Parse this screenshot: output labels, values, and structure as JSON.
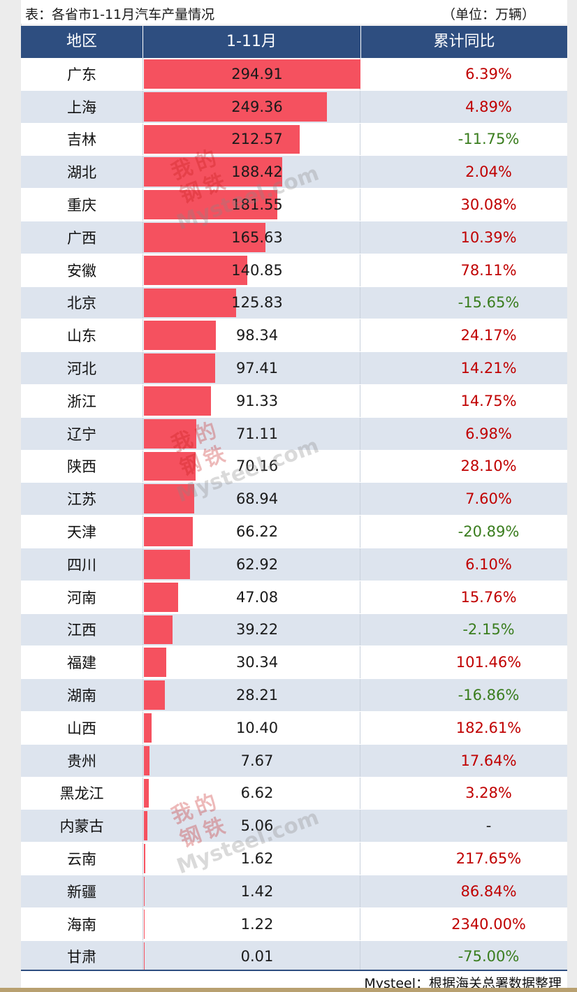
{
  "caption": {
    "title": "表：各省市1-11月汽车产量情况",
    "unit": "（单位：万辆）"
  },
  "header": {
    "region": "地区",
    "period": "1-11月",
    "yoy": "累计同比"
  },
  "source": "Mysteel：根据海关总署数据整理",
  "watermark": {
    "cn": [
      "我",
      "的",
      "钢",
      "铁"
    ],
    "en": "Mysteel.com"
  },
  "colors": {
    "header_bg": "#2e4e80",
    "bar": "#f5515f",
    "positive": "#c00000",
    "negative": "#3a7d1e",
    "row_alt": "#dde4ee"
  },
  "chart_data": {
    "type": "table",
    "columns": [
      "地区",
      "1-11月",
      "累计同比"
    ],
    "rows": [
      {
        "region": "广东",
        "value": "294.91",
        "yoy": "6.39%"
      },
      {
        "region": "上海",
        "value": "249.36",
        "yoy": "4.89%"
      },
      {
        "region": "吉林",
        "value": "212.57",
        "yoy": "-11.75%"
      },
      {
        "region": "湖北",
        "value": "188.42",
        "yoy": "2.04%"
      },
      {
        "region": "重庆",
        "value": "181.55",
        "yoy": "30.08%"
      },
      {
        "region": "广西",
        "value": "165.63",
        "yoy": "10.39%"
      },
      {
        "region": "安徽",
        "value": "140.85",
        "yoy": "78.11%"
      },
      {
        "region": "北京",
        "value": "125.83",
        "yoy": "-15.65%"
      },
      {
        "region": "山东",
        "value": "98.34",
        "yoy": "24.17%"
      },
      {
        "region": "河北",
        "value": "97.41",
        "yoy": "14.21%"
      },
      {
        "region": "浙江",
        "value": "91.33",
        "yoy": "14.75%"
      },
      {
        "region": "辽宁",
        "value": "71.11",
        "yoy": "6.98%"
      },
      {
        "region": "陕西",
        "value": "70.16",
        "yoy": "28.10%"
      },
      {
        "region": "江苏",
        "value": "68.94",
        "yoy": "7.60%"
      },
      {
        "region": "天津",
        "value": "66.22",
        "yoy": "-20.89%"
      },
      {
        "region": "四川",
        "value": "62.92",
        "yoy": "6.10%"
      },
      {
        "region": "河南",
        "value": "47.08",
        "yoy": "15.76%"
      },
      {
        "region": "江西",
        "value": "39.22",
        "yoy": "-2.15%"
      },
      {
        "region": "福建",
        "value": "30.34",
        "yoy": "101.46%"
      },
      {
        "region": "湖南",
        "value": "28.21",
        "yoy": "-16.86%"
      },
      {
        "region": "山西",
        "value": "10.40",
        "yoy": "182.61%"
      },
      {
        "region": "贵州",
        "value": "7.67",
        "yoy": "17.64%"
      },
      {
        "region": "黑龙江",
        "value": "6.62",
        "yoy": "3.28%"
      },
      {
        "region": "内蒙古",
        "value": "5.06",
        "yoy": "-"
      },
      {
        "region": "云南",
        "value": "1.62",
        "yoy": "217.65%"
      },
      {
        "region": "新疆",
        "value": "1.42",
        "yoy": "86.84%"
      },
      {
        "region": "海南",
        "value": "1.22",
        "yoy": "2340.00%"
      },
      {
        "region": "甘肃",
        "value": "0.01",
        "yoy": "-75.00%"
      }
    ],
    "bar_max": 294.91
  }
}
